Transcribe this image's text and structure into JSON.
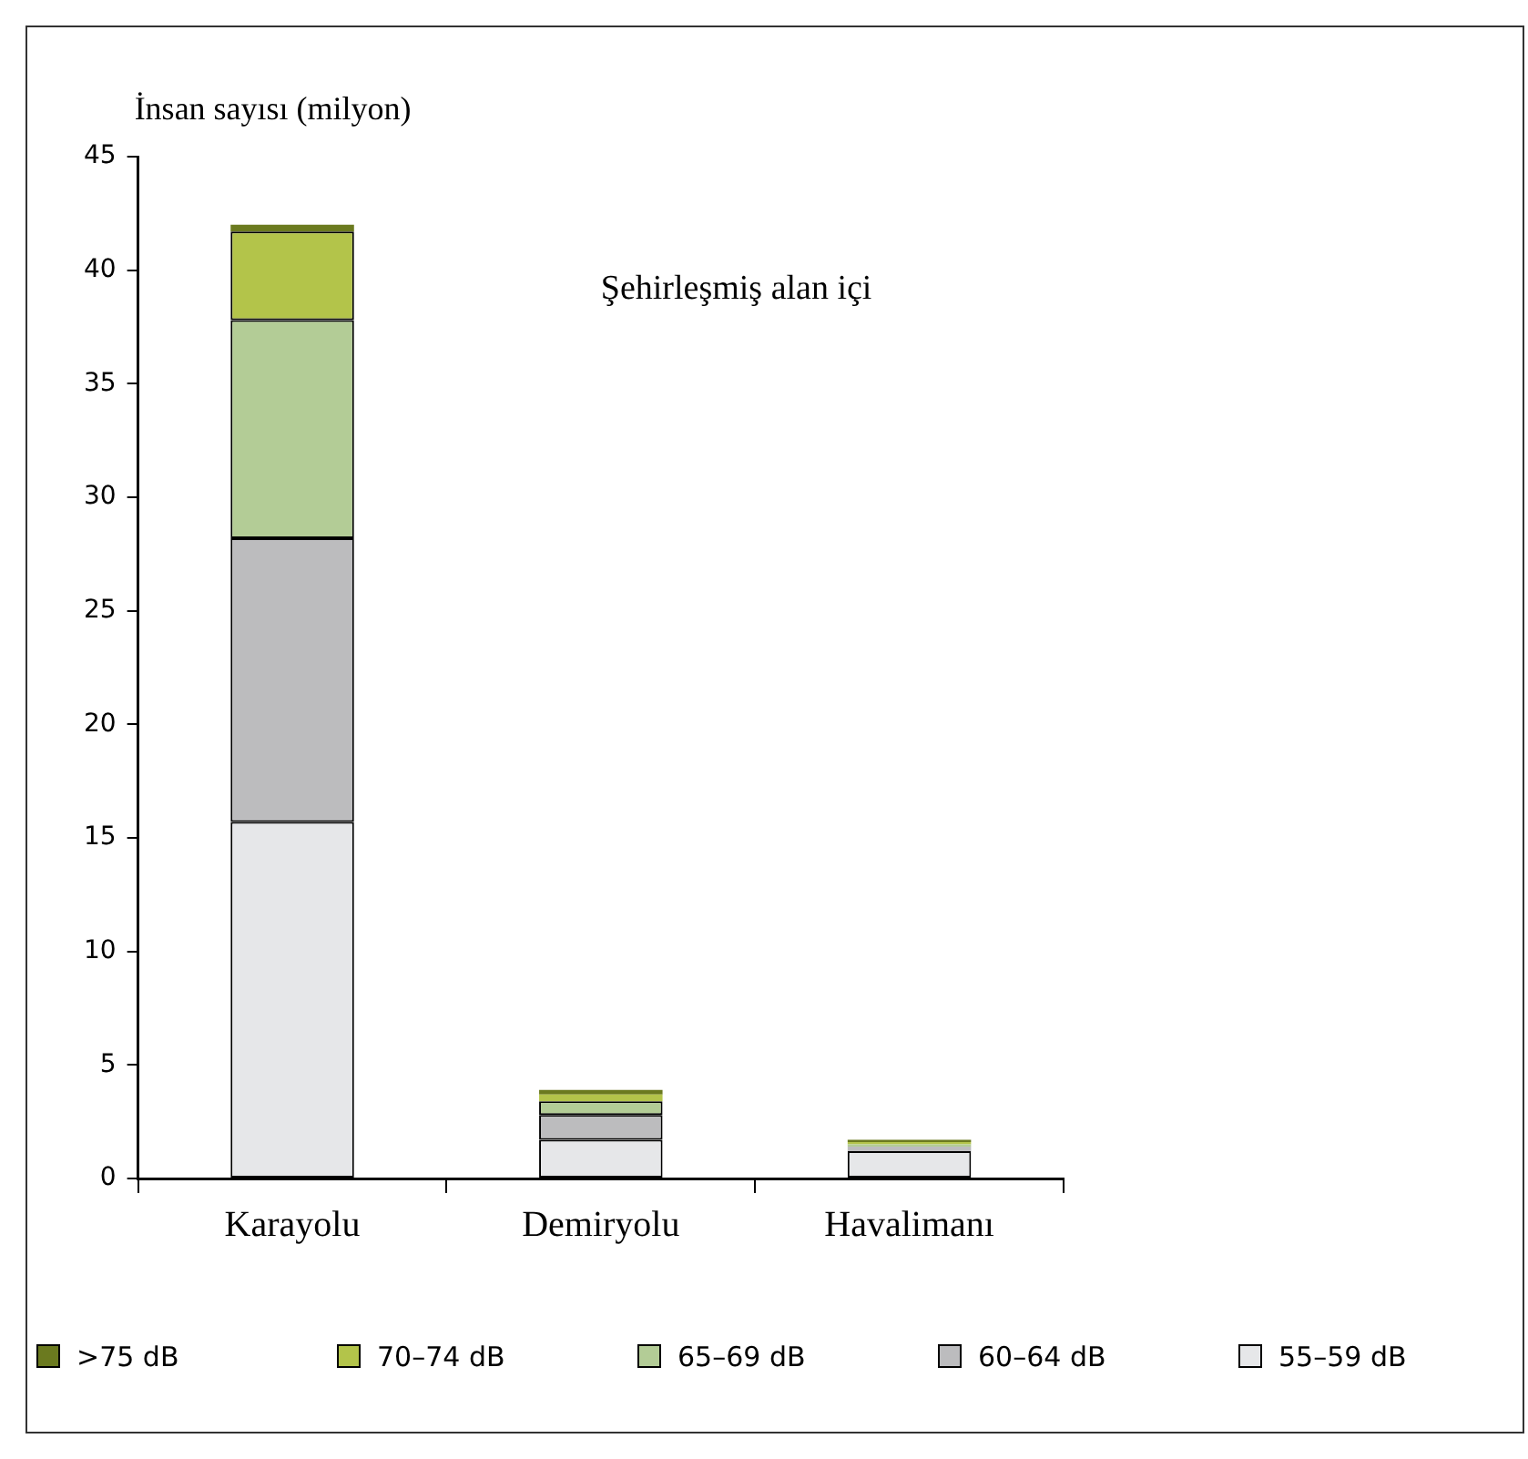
{
  "chart_data": {
    "type": "bar",
    "stacked": true,
    "ylabel": "İnsan sayısı (milyon)",
    "annotations": [
      "Şehirleşmiş alan içi"
    ],
    "categories": [
      "Karayolu",
      "Demiryolu",
      "Havalimanı"
    ],
    "ylim": [
      0,
      45
    ],
    "yticks": [
      0,
      5,
      10,
      15,
      20,
      25,
      30,
      35,
      40,
      45
    ],
    "grid": false,
    "legend": "bottom",
    "series": [
      {
        "name": "55–59 dB",
        "color": "#e6e7e9",
        "values": [
          15.7,
          1.7,
          1.2
        ]
      },
      {
        "name": "60–64 dB",
        "color": "#bcbcbe",
        "values": [
          12.5,
          1.1,
          0.2
        ]
      },
      {
        "name": "65–69 dB",
        "color": "#b3cc96",
        "values": [
          9.6,
          0.6,
          0.1
        ]
      },
      {
        "name": "70–74 dB",
        "color": "#b3c44a",
        "values": [
          3.9,
          0.3,
          0.1
        ]
      },
      {
        "name": ">75 dB",
        "color": "#6b7a1f",
        "values": [
          0.3,
          0.2,
          0.1
        ]
      }
    ]
  }
}
